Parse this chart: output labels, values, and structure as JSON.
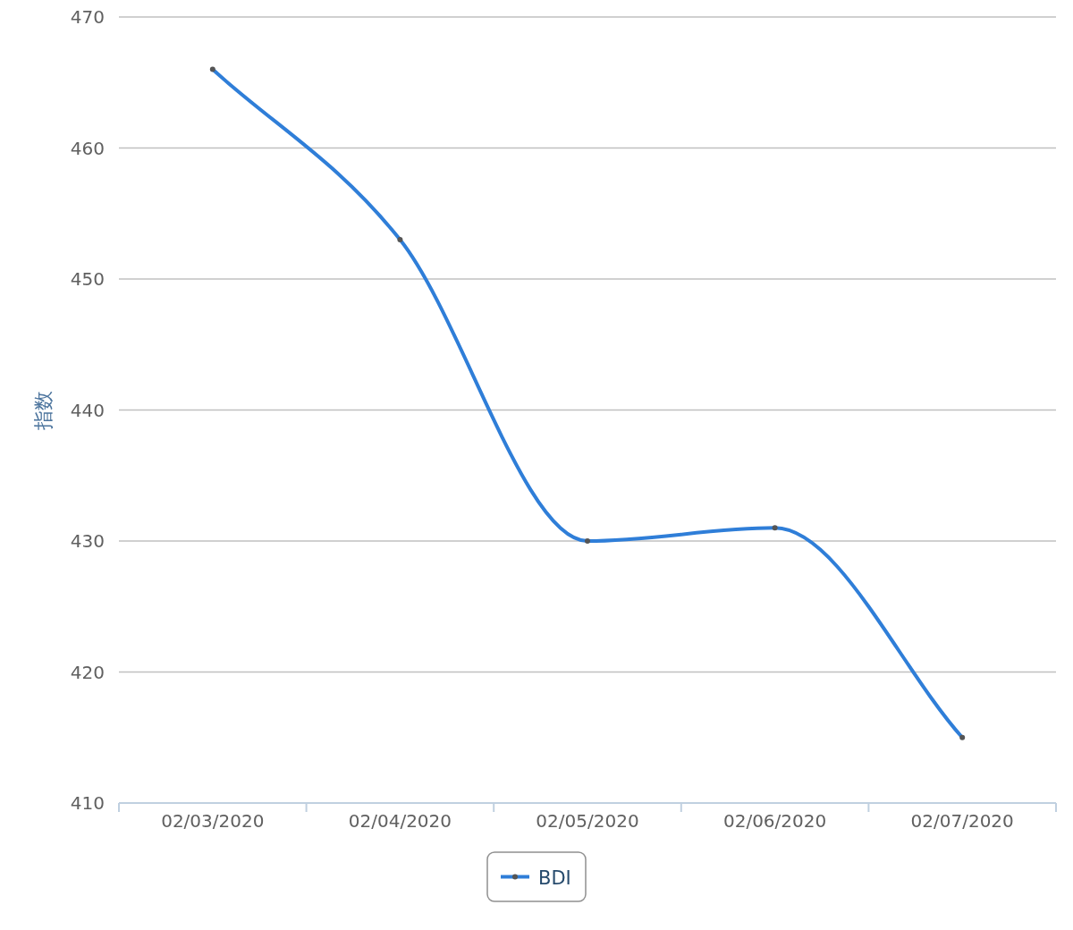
{
  "chart_data": {
    "type": "line",
    "ylabel": "指数",
    "categories": [
      "02/03/2020",
      "02/04/2020",
      "02/05/2020",
      "02/06/2020",
      "02/07/2020"
    ],
    "series": [
      {
        "name": "BDI",
        "color": "#2f7ed8",
        "values": [
          466,
          453,
          430,
          431,
          415
        ]
      }
    ],
    "ylim": [
      410,
      470
    ],
    "yticks": [
      410,
      420,
      430,
      440,
      450,
      460,
      470
    ],
    "grid": "y",
    "legend": "bottom",
    "marker": "circle",
    "line_style": "solid"
  }
}
